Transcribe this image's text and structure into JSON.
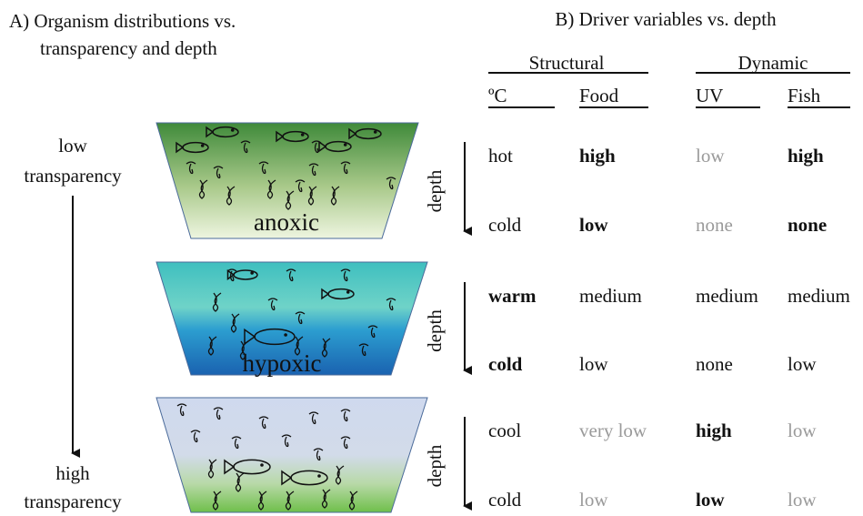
{
  "panel_a": {
    "title_lines": [
      "A) Organism distributions vs.",
      "transparency and depth"
    ],
    "low_label": [
      "low",
      "transparency"
    ],
    "high_label": [
      "high",
      "transparency"
    ],
    "lakes": [
      "anoxic",
      "hypoxic"
    ]
  },
  "panel_b": {
    "title": "B) Driver variables vs. depth",
    "groups": [
      "Structural",
      "Dynamic"
    ],
    "columns": [
      "ºC",
      "Food",
      "UV",
      "Fish"
    ],
    "axis_label": "depth",
    "blocks": [
      [
        [
          {
            "text": "hot",
            "style": "normal"
          },
          {
            "text": "high",
            "style": "bold"
          },
          {
            "text": "low",
            "style": "gray"
          },
          {
            "text": "high",
            "style": "bold"
          }
        ],
        [
          {
            "text": "cold",
            "style": "normal"
          },
          {
            "text": "low",
            "style": "bold"
          },
          {
            "text": "none",
            "style": "gray"
          },
          {
            "text": "none",
            "style": "bold"
          }
        ]
      ],
      [
        [
          {
            "text": "warm",
            "style": "bold"
          },
          {
            "text": "medium",
            "style": "normal"
          },
          {
            "text": "medium",
            "style": "normal"
          },
          {
            "text": "medium",
            "style": "normal"
          }
        ],
        [
          {
            "text": "cold",
            "style": "bold"
          },
          {
            "text": "low",
            "style": "normal"
          },
          {
            "text": "none",
            "style": "normal"
          },
          {
            "text": "low",
            "style": "normal"
          }
        ]
      ],
      [
        [
          {
            "text": "cool",
            "style": "normal"
          },
          {
            "text": "very low",
            "style": "gray"
          },
          {
            "text": "high",
            "style": "bold"
          },
          {
            "text": "low",
            "style": "gray"
          }
        ],
        [
          {
            "text": "cold",
            "style": "normal"
          },
          {
            "text": "low",
            "style": "gray"
          },
          {
            "text": "low",
            "style": "bold"
          },
          {
            "text": "low",
            "style": "gray"
          }
        ]
      ]
    ]
  }
}
